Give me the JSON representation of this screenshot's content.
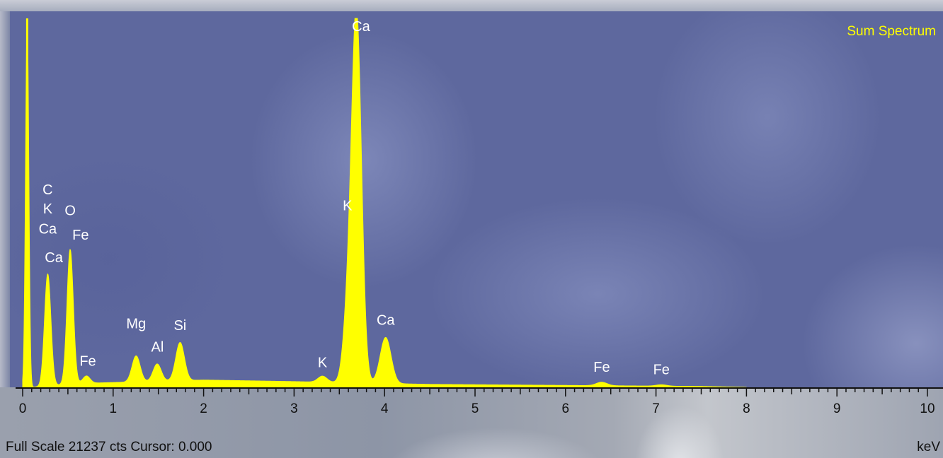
{
  "chart_data": {
    "type": "area",
    "title": "Sum Spectrum",
    "xlabel": "keV",
    "xlim": [
      0,
      10
    ],
    "ylim": [
      0,
      21237
    ],
    "x_ticks": [
      "0",
      "1",
      "2",
      "3",
      "4",
      "5",
      "6",
      "7",
      "8",
      "9",
      "10"
    ],
    "footer": "Full Scale 21237 cts Cursor: 0.000",
    "colors": {
      "spectrum": "#ffff00",
      "labels": "#ffffff",
      "title": "#ffff00"
    },
    "peaks": [
      {
        "x": 0.05,
        "y": 21237,
        "sigma": 0.018
      },
      {
        "x": 0.277,
        "y": 6450,
        "sigma": 0.035
      },
      {
        "x": 0.525,
        "y": 7750,
        "sigma": 0.035
      },
      {
        "x": 0.705,
        "y": 420,
        "sigma": 0.04
      },
      {
        "x": 1.254,
        "y": 1500,
        "sigma": 0.045
      },
      {
        "x": 1.487,
        "y": 1000,
        "sigma": 0.045
      },
      {
        "x": 1.74,
        "y": 2200,
        "sigma": 0.048
      },
      {
        "x": 3.314,
        "y": 350,
        "sigma": 0.05
      },
      {
        "x": 3.59,
        "y": 3300,
        "sigma": 0.05
      },
      {
        "x": 3.69,
        "y": 21237,
        "sigma": 0.055
      },
      {
        "x": 4.012,
        "y": 2650,
        "sigma": 0.06
      },
      {
        "x": 6.4,
        "y": 200,
        "sigma": 0.06
      },
      {
        "x": 7.06,
        "y": 80,
        "sigma": 0.06
      }
    ],
    "background": [
      {
        "x": 0.6,
        "y": 220
      },
      {
        "x": 2.0,
        "y": 420
      },
      {
        "x": 3.0,
        "y": 330
      },
      {
        "x": 4.5,
        "y": 170
      },
      {
        "x": 6.0,
        "y": 110
      },
      {
        "x": 7.5,
        "y": 50
      },
      {
        "x": 8.0,
        "y": 0
      }
    ],
    "annotations": [
      {
        "text": "C",
        "x": 0.277,
        "y": 11100
      },
      {
        "text": "K",
        "x": 0.277,
        "y": 10000
      },
      {
        "text": "O",
        "x": 0.525,
        "y": 9900
      },
      {
        "text": "Ca",
        "x": 0.277,
        "y": 8850
      },
      {
        "text": "Fe",
        "x": 0.64,
        "y": 8500
      },
      {
        "text": "Ca",
        "x": 0.345,
        "y": 7200
      },
      {
        "text": "Fe",
        "x": 0.72,
        "y": 1250
      },
      {
        "text": "Mg",
        "x": 1.254,
        "y": 3400
      },
      {
        "text": "Al",
        "x": 1.49,
        "y": 2050
      },
      {
        "text": "Si",
        "x": 1.74,
        "y": 3300
      },
      {
        "text": "K",
        "x": 3.314,
        "y": 1150
      },
      {
        "text": "K",
        "x": 3.59,
        "y": 10200
      },
      {
        "text": "Ca",
        "x": 3.74,
        "y": 20500
      },
      {
        "text": "Ca",
        "x": 4.012,
        "y": 3600
      },
      {
        "text": "Fe",
        "x": 6.4,
        "y": 900
      },
      {
        "text": "Fe",
        "x": 7.06,
        "y": 750
      }
    ]
  }
}
